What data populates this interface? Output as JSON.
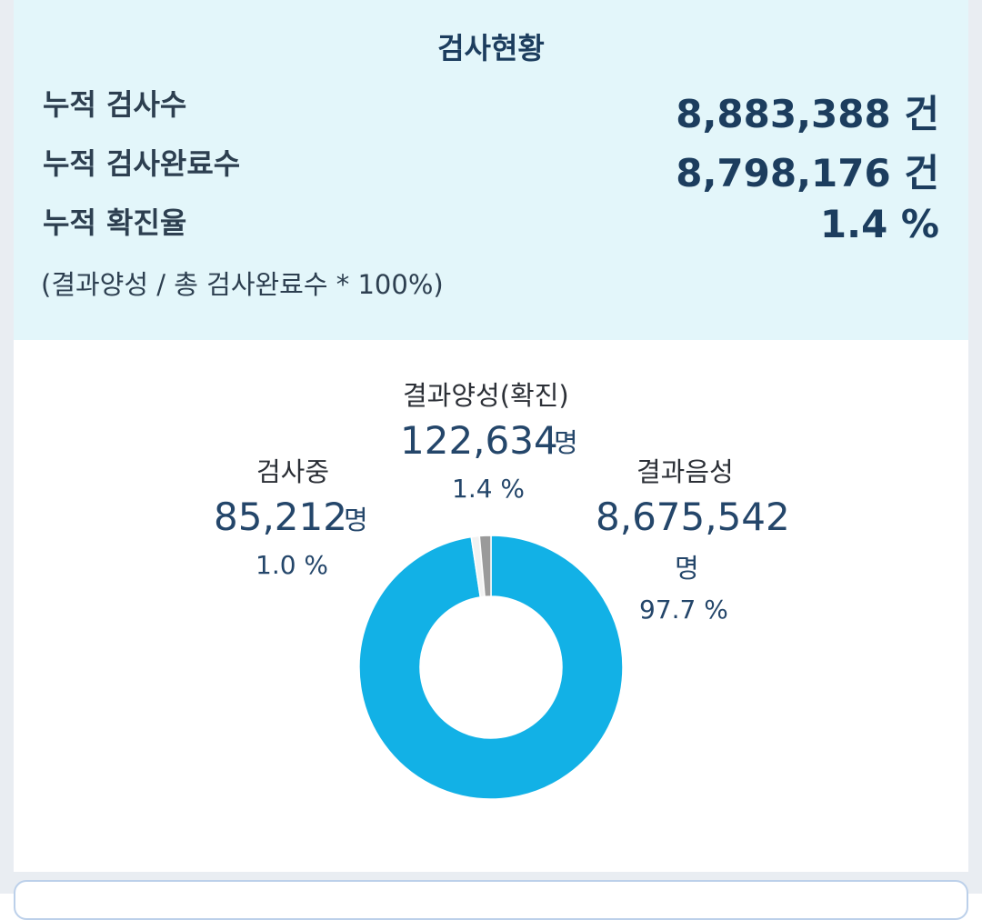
{
  "summary": {
    "title": "검사현황",
    "rows": [
      {
        "label": "누적 검사수",
        "value": "8,883,388 건"
      },
      {
        "label": "누적 검사완료수",
        "value": "8,798,176 건"
      },
      {
        "label": "누적 확진율",
        "value": "1.4 %"
      }
    ],
    "formula": "(결과양성 / 총 검사완료수 * 100%)"
  },
  "chart_data": {
    "type": "pie",
    "variant": "donut",
    "slices": [
      {
        "name": "결과음성",
        "count": "8,675,542",
        "unit": "명",
        "percent_label": "97.7 %",
        "value": 97.7,
        "color": "#12b1e6"
      },
      {
        "name": "검사중",
        "count": "85,212",
        "unit": "명",
        "percent_label": "1.0 %",
        "value": 1.0,
        "color": "#f2f2f2"
      },
      {
        "name": "결과양성(확진)",
        "count": "122,634",
        "unit": "명",
        "percent_label": "1.4 %",
        "value": 1.4,
        "color": "#9a9a9a"
      }
    ]
  }
}
